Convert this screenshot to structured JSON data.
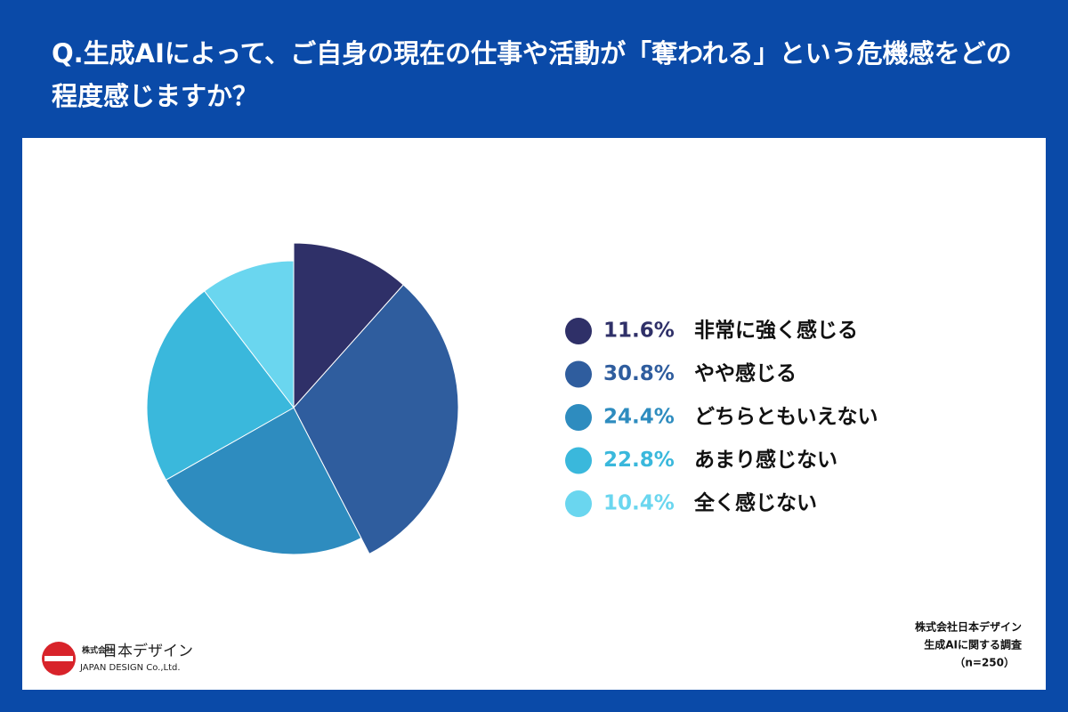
{
  "chart_data": {
    "type": "pie",
    "title": "Q.生成AIによって、ご自身の現在の仕事や活動が「奪われる」という危機感をどの程度感じますか？",
    "categories": [
      "非常に強く感じる",
      "やや感じる",
      "どちらともいえない",
      "あまり感じない",
      "全く感じない"
    ],
    "values": [
      11.6,
      30.8,
      24.4,
      22.8,
      10.4
    ],
    "value_labels": [
      "11.6%",
      "30.8%",
      "24.4%",
      "22.8%",
      "10.4%"
    ],
    "colors": [
      "#2f3068",
      "#2f5d9e",
      "#2e8cbf",
      "#3ab8dc",
      "#6ad6ef"
    ]
  },
  "source": {
    "lines": [
      "株式会社日本デザイン",
      "生成AIに関する調査",
      "（n=250）"
    ]
  },
  "logo": {
    "small": "株式会社",
    "name": "日本デザイン",
    "english": "JAPAN DESIGN Co.,Ltd."
  }
}
